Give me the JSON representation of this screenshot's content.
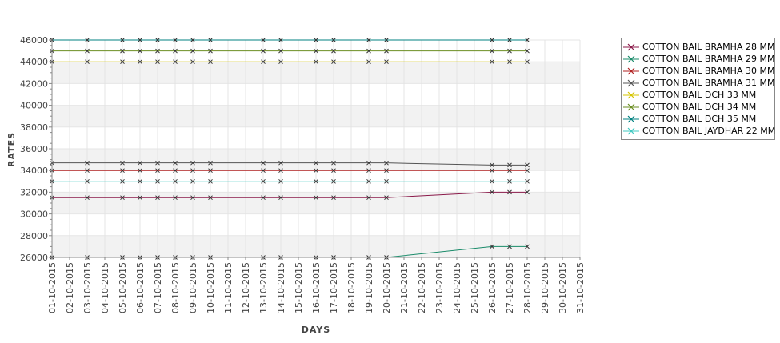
{
  "chart_data": {
    "type": "line",
    "xlabel": "DAYS",
    "ylabel": "RATES",
    "ylim": [
      26000,
      46000
    ],
    "yticks": [
      26000,
      28000,
      30000,
      32000,
      34000,
      36000,
      38000,
      40000,
      42000,
      44000,
      46000
    ],
    "y_tick_labels": [
      "26000",
      "28000",
      "30000",
      "32000",
      "34000",
      "36000",
      "38000",
      "40000",
      "42000",
      "44000",
      "46000"
    ],
    "x_tick_labels": [
      "01-10-2015",
      "02-10-2015",
      "03-10-2015",
      "04-10-2015",
      "05-10-2015",
      "06-10-2015",
      "07-10-2015",
      "08-10-2015",
      "09-10-2015",
      "10-10-2015",
      "11-10-2015",
      "12-10-2015",
      "13-10-2015",
      "14-10-2015",
      "15-10-2015",
      "16-10-2015",
      "17-10-2015",
      "18-10-2015",
      "19-10-2015",
      "20-10-2015",
      "21-10-2015",
      "22-10-2015",
      "23-10-2015",
      "24-10-2015",
      "25-10-2015",
      "26-10-2015",
      "27-10-2015",
      "28-10-2015",
      "29-10-2015",
      "30-10-2015",
      "31-10-2015"
    ],
    "x": [
      "01-10-2015",
      "03-10-2015",
      "05-10-2015",
      "06-10-2015",
      "07-10-2015",
      "08-10-2015",
      "09-10-2015",
      "10-10-2015",
      "13-10-2015",
      "14-10-2015",
      "16-10-2015",
      "17-10-2015",
      "19-10-2015",
      "20-10-2015",
      "26-10-2015",
      "27-10-2015",
      "28-10-2015"
    ],
    "grid": true,
    "legend_position": "right",
    "series": [
      {
        "name": "COTTON BAIL BRAMHA 28 MM",
        "color": "#8b1a4a",
        "values": [
          31500,
          31500,
          31500,
          31500,
          31500,
          31500,
          31500,
          31500,
          31500,
          31500,
          31500,
          31500,
          31500,
          31500,
          32000,
          32000,
          32000
        ]
      },
      {
        "name": "COTTON BAIL BRAMHA 29 MM",
        "color": "#1a8b6a",
        "values": [
          26000,
          26000,
          26000,
          26000,
          26000,
          26000,
          26000,
          26000,
          26000,
          26000,
          26000,
          26000,
          26000,
          26000,
          27000,
          27000,
          27000
        ]
      },
      {
        "name": "COTTON BAIL BRAMHA 30 MM",
        "color": "#b22222",
        "values": [
          34000,
          34000,
          34000,
          34000,
          34000,
          34000,
          34000,
          34000,
          34000,
          34000,
          34000,
          34000,
          34000,
          34000,
          34000,
          34000,
          34000
        ]
      },
      {
        "name": "COTTON BAIL BRAMHA 31 MM",
        "color": "#555555",
        "values": [
          34700,
          34700,
          34700,
          34700,
          34700,
          34700,
          34700,
          34700,
          34700,
          34700,
          34700,
          34700,
          34700,
          34700,
          34500,
          34500,
          34500
        ]
      },
      {
        "name": "COTTON BAIL DCH 33 MM",
        "color": "#d4c400",
        "values": [
          44000,
          44000,
          44000,
          44000,
          44000,
          44000,
          44000,
          44000,
          44000,
          44000,
          44000,
          44000,
          44000,
          44000,
          44000,
          44000,
          44000
        ]
      },
      {
        "name": "COTTON BAIL DCH 34 MM",
        "color": "#6b8e23",
        "values": [
          45000,
          45000,
          45000,
          45000,
          45000,
          45000,
          45000,
          45000,
          45000,
          45000,
          45000,
          45000,
          45000,
          45000,
          45000,
          45000,
          45000
        ]
      },
      {
        "name": "COTTON BAIL DCH 35 MM",
        "color": "#008080",
        "values": [
          46000,
          46000,
          46000,
          46000,
          46000,
          46000,
          46000,
          46000,
          46000,
          46000,
          46000,
          46000,
          46000,
          46000,
          46000,
          46000,
          46000
        ]
      },
      {
        "name": "COTTON BAIL JAYDHAR 22 MM",
        "color": "#40c8c0",
        "values": [
          33000,
          33000,
          33000,
          33000,
          33000,
          33000,
          33000,
          33000,
          33000,
          33000,
          33000,
          33000,
          33000,
          33000,
          33000,
          33000,
          33000
        ]
      }
    ]
  }
}
